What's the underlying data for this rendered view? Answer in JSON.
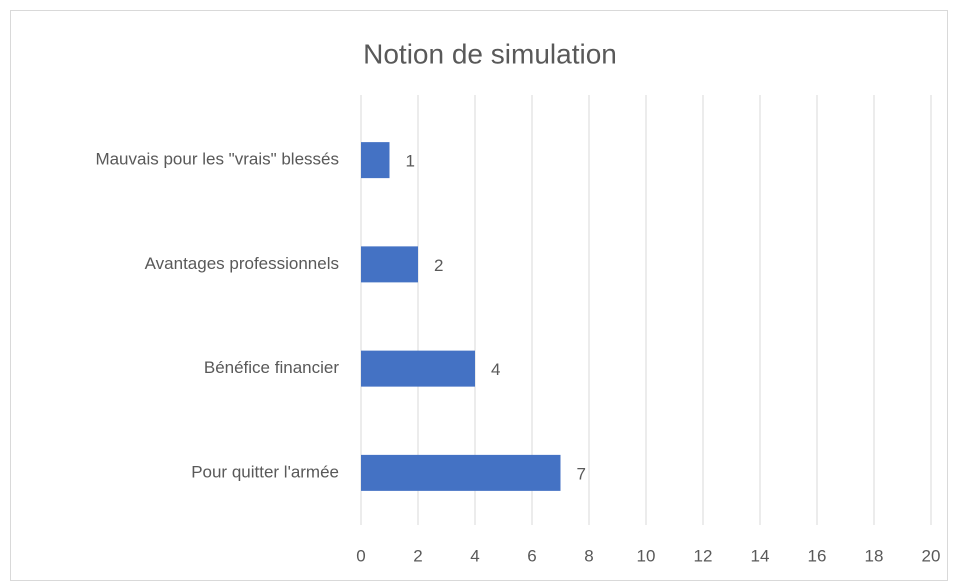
{
  "chart_data": {
    "type": "bar",
    "orientation": "horizontal",
    "title": "Notion de simulation",
    "categories": [
      "Mauvais pour les \"vrais\" blessés",
      "Avantages professionnels",
      "Bénéfice financier",
      "Pour quitter l'armée"
    ],
    "values": [
      1,
      2,
      4,
      7
    ],
    "color": "#4472c4",
    "xlim": [
      0,
      20
    ],
    "xticks": [
      0,
      2,
      4,
      6,
      8,
      10,
      12,
      14,
      16,
      18,
      20
    ],
    "grid": true
  }
}
